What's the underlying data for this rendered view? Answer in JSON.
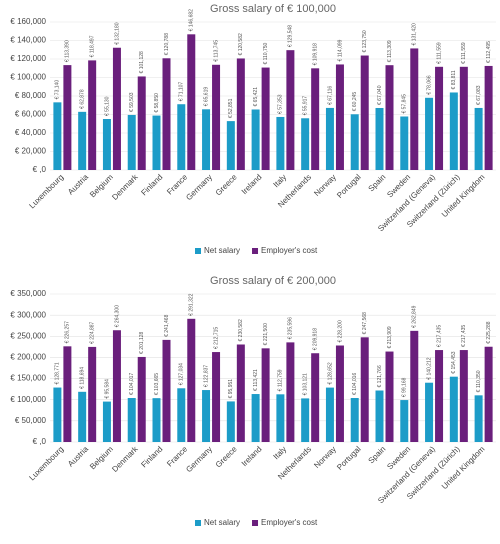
{
  "chart_data": [
    {
      "type": "bar",
      "title": "Gross salary of € 100,000",
      "categories": [
        "Luxembourg",
        "Austria",
        "Belgium",
        "Denmark",
        "Finland",
        "France",
        "Germany",
        "Greece",
        "Ireland",
        "Italy",
        "Netherlands",
        "Norway",
        "Portugal",
        "Spain",
        "Sweden",
        "Switzerland (Geneva)",
        "Switzerland (Zürich)",
        "United Kingdom"
      ],
      "series": [
        {
          "name": "Net salary",
          "color": "#1c9cc8",
          "values": [
            73140,
            62878,
            55130,
            59503,
            58850,
            71107,
            65619,
            52851,
            65421,
            57353,
            55917,
            67116,
            60245,
            67040,
            57845,
            78066,
            83811,
            67083
          ],
          "value_labels": [
            "€ 73,140",
            "€ 62,878",
            "€ 55,130",
            "€ 59,503",
            "€ 58,850",
            "€ 71,107",
            "€ 65,619",
            "€ 52,851",
            "€ 65,421",
            "€ 57,353",
            "€ 55,917",
            "€ 67,116",
            "€ 60,245",
            "€ 67,040",
            "€ 57,845",
            "€ 78,066",
            "€ 83,811",
            "€ 67,083"
          ]
        },
        {
          "name": "Employer's cost",
          "color": "#6a1f7c",
          "values": [
            113390,
            118497,
            132180,
            101128,
            120788,
            146682,
            113745,
            120582,
            110750,
            129548,
            109918,
            114099,
            123750,
            113309,
            131420,
            111559,
            111559,
            112495
          ],
          "value_labels": [
            "€ 113,390",
            "€ 118,497",
            "€ 132,180",
            "€ 101,128",
            "€ 120,788",
            "€ 146,682",
            "€ 113,745",
            "€ 120,582",
            "€ 110,750",
            "€ 129,548",
            "€ 109,918",
            "€ 114,099",
            "€ 123,750",
            "€ 113,309",
            "€ 131,420",
            "€ 111,559",
            "€ 111,559",
            "€ 112,495"
          ]
        }
      ],
      "ylim": [
        0,
        160000
      ],
      "yticks": [
        {
          "value": 0,
          "label": "€ ,0"
        },
        {
          "value": 20000,
          "label": "€ 20,000"
        },
        {
          "value": 40000,
          "label": "€ 40,000"
        },
        {
          "value": 60000,
          "label": "€ 60,000"
        },
        {
          "value": 80000,
          "label": "€ 80,000"
        },
        {
          "value": 100000,
          "label": "€ 100,000"
        },
        {
          "value": 120000,
          "label": "€ 120,000"
        },
        {
          "value": 140000,
          "label": "€ 140,000"
        },
        {
          "value": 160000,
          "label": "€ 160,000"
        }
      ],
      "grid": true,
      "legend": "bottom"
    },
    {
      "type": "bar",
      "title": "Gross salary of € 200,000",
      "categories": [
        "Luxembourg",
        "Austria",
        "Belgium",
        "Denmark",
        "Finland",
        "France",
        "Germany",
        "Greece",
        "Ireland",
        "Italy",
        "Netherlands",
        "Norway",
        "Portugal",
        "Spain",
        "Sweden",
        "Switzerland (Geneva)",
        "Switzerland (Zürich)",
        "United Kingdom"
      ],
      "series": [
        {
          "name": "Net salary",
          "color": "#1c9cc8",
          "values": [
            128771,
            118694,
            95584,
            104017,
            103665,
            127034,
            122837,
            95951,
            113421,
            112759,
            103121,
            128652,
            104016,
            121766,
            99168,
            140212,
            154453,
            110350
          ],
          "value_labels": [
            "€ 128,771",
            "€ 118,694",
            "€ 95,584",
            "€ 104,017",
            "€ 103,665",
            "€ 127,034",
            "€ 122,837",
            "€ 95,951",
            "€ 113,421",
            "€ 112,759",
            "€ 103,121",
            "€ 128,652",
            "€ 104,016",
            "€ 121,766",
            "€ 99,168",
            "€ 140,212",
            "€ 154,453",
            "€ 110,350"
          ]
        },
        {
          "name": "Employer's cost",
          "color": "#6a1f7c",
          "values": [
            226257,
            224887,
            264300,
            201128,
            241468,
            291322,
            212715,
            230582,
            221500,
            235596,
            209918,
            228200,
            247568,
            213909,
            262849,
            217435,
            217435,
            225288
          ],
          "value_labels": [
            "€ 226,257",
            "€ 224,887",
            "€ 264,300",
            "€ 201,128",
            "€ 241,468",
            "€ 291,322",
            "€ 212,715",
            "€ 230,582",
            "€ 221,500",
            "€ 235,596",
            "€ 209,918",
            "€ 228,200",
            "€ 247,568",
            "€ 213,909",
            "€ 262,849",
            "€ 217,435",
            "€ 217,435",
            "€ 225,288"
          ]
        }
      ],
      "ylim": [
        0,
        350000
      ],
      "yticks": [
        {
          "value": 0,
          "label": "€ ,0"
        },
        {
          "value": 50000,
          "label": "€ 50,000"
        },
        {
          "value": 100000,
          "label": "€ 100,000"
        },
        {
          "value": 150000,
          "label": "€ 150,000"
        },
        {
          "value": 200000,
          "label": "€ 200,000"
        },
        {
          "value": 250000,
          "label": "€ 250,000"
        },
        {
          "value": 300000,
          "label": "€ 300,000"
        },
        {
          "value": 350000,
          "label": "€ 350,000"
        }
      ],
      "grid": true,
      "legend": "bottom"
    }
  ]
}
